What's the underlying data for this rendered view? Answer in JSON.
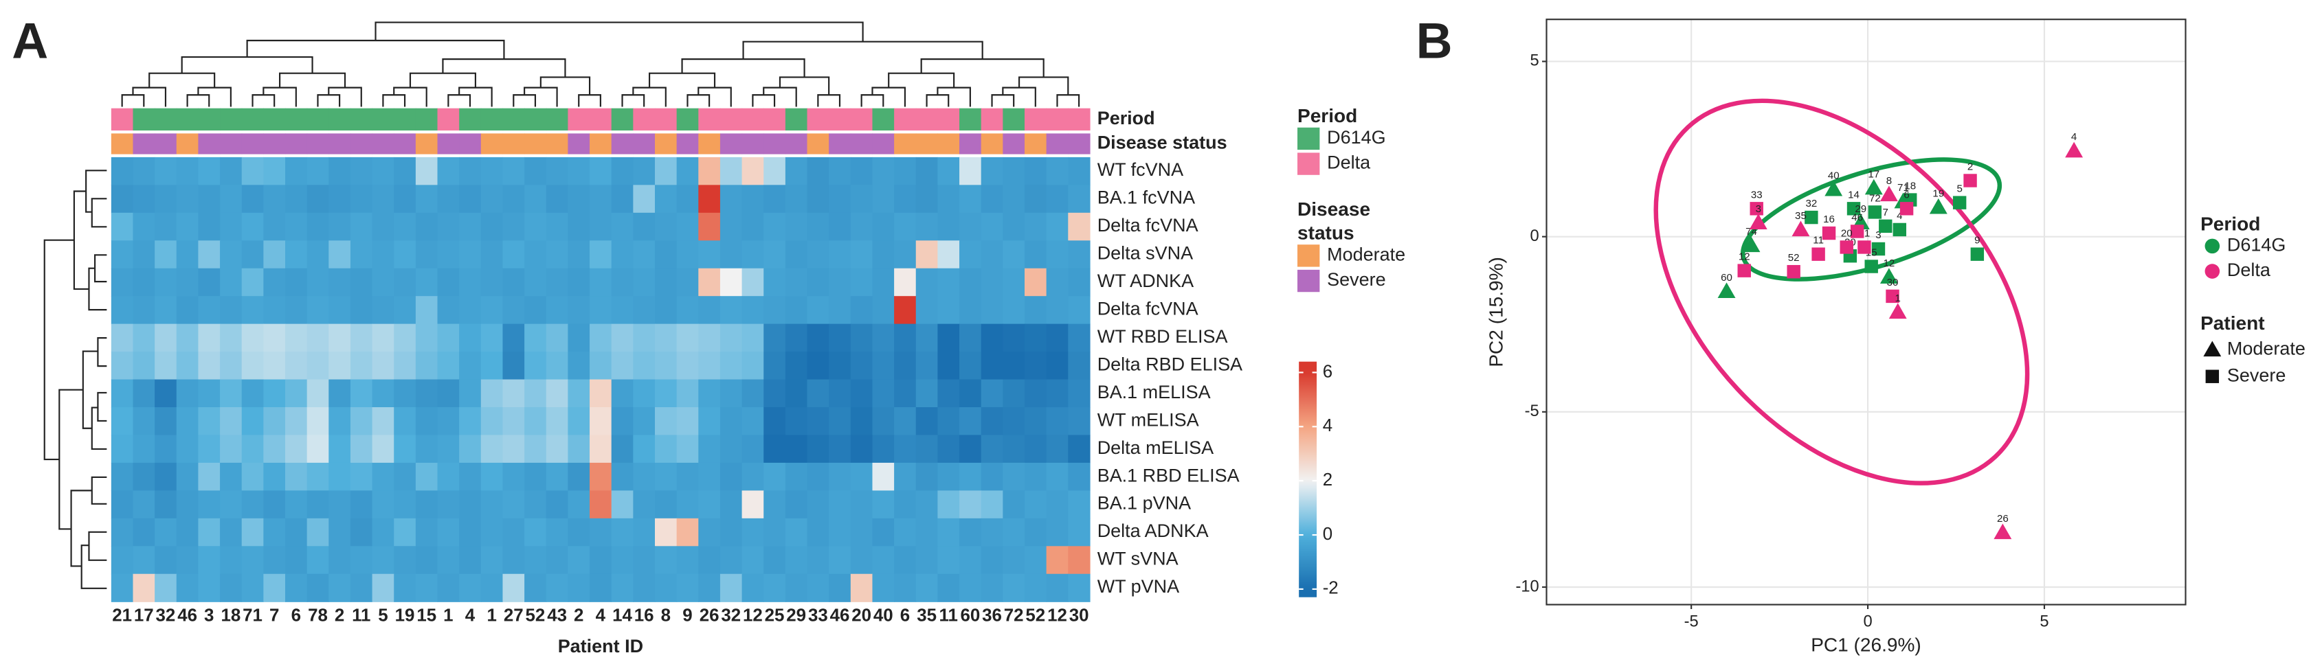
{
  "panel_labels": [
    "A",
    "B"
  ],
  "chart_data": [
    {
      "type": "heatmap",
      "x_label": "Patient ID",
      "categories": [
        "21",
        "17",
        "32",
        "46",
        "3",
        "18",
        "71",
        "7",
        "6",
        "78",
        "2",
        "11",
        "5",
        "19",
        "15",
        "1",
        "4",
        "1",
        "27",
        "52",
        "43",
        "2",
        "4",
        "14",
        "16",
        "8",
        "9",
        "26",
        "32",
        "12",
        "25",
        "29",
        "33",
        "46",
        "20",
        "40",
        "6",
        "35",
        "11",
        "60",
        "36",
        "72",
        "52",
        "12",
        "30"
      ],
      "rows": [
        "WT fcVNA",
        "BA.1 fcVNA",
        "Delta fcVNA",
        "Delta sVNA",
        "WT ADNKA",
        "Delta fcVNA",
        "WT RBD ELISA",
        "Delta RBD ELISA",
        "BA.1 mELISA",
        "WT mELISA",
        "Delta mELISA",
        "BA.1 RBD ELISA",
        "BA.1 pVNA",
        "Delta ADNKA",
        "WT sVNA",
        "WT pVNA"
      ],
      "annotation_labels": [
        "Period",
        "Disease status"
      ],
      "period": [
        "Delta",
        "D614G",
        "D614G",
        "D614G",
        "D614G",
        "D614G",
        "D614G",
        "D614G",
        "D614G",
        "D614G",
        "D614G",
        "D614G",
        "D614G",
        "D614G",
        "D614G",
        "Delta",
        "D614G",
        "D614G",
        "D614G",
        "D614G",
        "D614G",
        "Delta",
        "Delta",
        "D614G",
        "Delta",
        "Delta",
        "D614G",
        "Delta",
        "Delta",
        "Delta",
        "Delta",
        "D614G",
        "Delta",
        "Delta",
        "Delta",
        "D614G",
        "Delta",
        "Delta",
        "Delta",
        "D614G",
        "Delta",
        "D614G",
        "Delta",
        "Delta",
        "Delta"
      ],
      "disease_status": [
        "Moderate",
        "Severe",
        "Severe",
        "Moderate",
        "Severe",
        "Severe",
        "Severe",
        "Severe",
        "Severe",
        "Severe",
        "Severe",
        "Severe",
        "Severe",
        "Severe",
        "Moderate",
        "Severe",
        "Severe",
        "Moderate",
        "Moderate",
        "Moderate",
        "Moderate",
        "Severe",
        "Moderate",
        "Severe",
        "Severe",
        "Moderate",
        "Severe",
        "Moderate",
        "Severe",
        "Severe",
        "Severe",
        "Severe",
        "Moderate",
        "Severe",
        "Severe",
        "Severe",
        "Moderate",
        "Moderate",
        "Moderate",
        "Severe",
        "Moderate",
        "Severe",
        "Moderate",
        "Severe",
        "Severe"
      ],
      "legends": [
        {
          "title": [
            "Period"
          ],
          "levels": [
            {
              "name": "D614G",
              "color": "#4caf72"
            },
            {
              "name": "Delta",
              "color": "#f478a0"
            }
          ]
        },
        {
          "title": [
            "Disease",
            "status"
          ],
          "levels": [
            {
              "name": "Moderate",
              "color": "#f5a05a"
            },
            {
              "name": "Severe",
              "color": "#b36cc0"
            }
          ]
        }
      ],
      "colorscale": [
        [
          -2,
          "#1a6fb0"
        ],
        [
          0,
          "#4fb0dc"
        ],
        [
          2,
          "#f2f2f2"
        ],
        [
          4,
          "#f4a582"
        ],
        [
          6,
          "#d93a2f"
        ]
      ],
      "colorbar": {
        "lim": [
          -2.3,
          6.4
        ],
        "ticks": [
          6,
          4,
          2,
          0,
          -2
        ]
      },
      "values": [
        [
          -0.6,
          -0.5,
          -0.3,
          -0.4,
          -0.2,
          -0.5,
          0.3,
          0.2,
          -0.4,
          -0.3,
          -0.6,
          -0.5,
          -0.4,
          -0.6,
          1.2,
          -0.3,
          -0.5,
          -0.4,
          -0.3,
          -0.6,
          -0.5,
          -0.4,
          -0.2,
          -0.6,
          -0.5,
          0.6,
          -0.4,
          3.5,
          1.0,
          2.8,
          1.2,
          -0.5,
          -0.8,
          -0.6,
          -0.7,
          -0.5,
          -0.6,
          -0.8,
          -0.4,
          1.6,
          -0.5,
          -0.6,
          -0.7,
          -0.5,
          -0.6
        ],
        [
          -0.8,
          -0.7,
          -0.6,
          -0.5,
          -0.6,
          -0.4,
          -0.7,
          -0.5,
          -0.6,
          -0.8,
          -0.7,
          -0.6,
          -0.5,
          -0.7,
          -0.4,
          -0.6,
          -0.7,
          -0.5,
          -0.6,
          -0.4,
          -0.7,
          -0.6,
          -0.5,
          -0.7,
          0.8,
          -0.4,
          -0.6,
          6.2,
          -0.5,
          -0.6,
          -0.7,
          -0.6,
          -0.8,
          -0.7,
          -0.6,
          -0.5,
          -0.7,
          -0.8,
          -0.6,
          -0.4,
          -0.7,
          -0.6,
          -0.8,
          -0.7,
          -0.5
        ],
        [
          0.2,
          -0.4,
          -0.5,
          -0.3,
          -0.6,
          -0.4,
          -0.2,
          -0.5,
          -0.4,
          -0.6,
          -0.5,
          -0.3,
          -0.5,
          -0.4,
          -0.6,
          -0.5,
          -0.4,
          -0.6,
          -0.5,
          -0.3,
          -0.4,
          -0.6,
          -0.5,
          -0.4,
          -0.6,
          -0.5,
          -0.4,
          5.0,
          -0.5,
          -0.6,
          -0.4,
          -0.5,
          -0.6,
          -0.7,
          -0.5,
          -0.6,
          -0.4,
          -0.5,
          -0.6,
          -0.5,
          -0.4,
          -0.6,
          -0.5,
          -0.3,
          3.0
        ],
        [
          -0.3,
          -0.5,
          0.3,
          -0.4,
          0.6,
          -0.3,
          -0.5,
          0.4,
          -0.2,
          -0.4,
          0.5,
          -0.3,
          -0.4,
          -0.2,
          -0.5,
          -0.4,
          -0.3,
          -0.5,
          -0.2,
          -0.4,
          -0.3,
          -0.5,
          0.2,
          -0.4,
          -0.3,
          -0.6,
          -0.4,
          -0.3,
          -0.5,
          -0.4,
          -0.3,
          -0.6,
          -0.5,
          -0.4,
          -0.3,
          -0.6,
          -0.5,
          3.0,
          1.5,
          -0.4,
          -0.5,
          -0.3,
          -0.6,
          -0.4,
          -0.5
        ],
        [
          -0.5,
          -0.6,
          -0.4,
          -0.5,
          -0.7,
          -0.3,
          0.3,
          -0.5,
          -0.6,
          -0.4,
          -0.5,
          -0.6,
          -0.4,
          -0.5,
          -0.3,
          -0.6,
          -0.4,
          -0.5,
          -0.6,
          -0.4,
          -0.5,
          -0.6,
          -0.3,
          -0.5,
          -0.4,
          -0.6,
          -0.5,
          3.2,
          2.0,
          1.0,
          -0.4,
          -0.5,
          -0.6,
          -0.5,
          -0.4,
          -0.6,
          2.2,
          -0.5,
          -0.4,
          -0.6,
          -0.5,
          -0.4,
          3.5,
          -0.5,
          -0.6
        ],
        [
          -0.4,
          -0.5,
          -0.3,
          -0.6,
          -0.4,
          -0.5,
          -0.3,
          -0.4,
          -0.5,
          -0.3,
          -0.4,
          -0.6,
          -0.5,
          -0.4,
          0.5,
          -0.5,
          -0.4,
          -0.3,
          -0.5,
          -0.6,
          -0.4,
          -0.5,
          -0.3,
          -0.4,
          -0.5,
          -0.6,
          -0.4,
          -0.5,
          -0.3,
          -0.4,
          -0.5,
          -0.6,
          -0.4,
          -0.5,
          -0.7,
          -0.6,
          6.5,
          -0.5,
          -0.4,
          -0.6,
          -0.5,
          -0.4,
          -0.6,
          -0.5,
          -0.4
        ],
        [
          0.8,
          0.5,
          1.0,
          0.6,
          1.2,
          0.9,
          1.3,
          1.4,
          1.2,
          1.1,
          1.3,
          1.0,
          1.2,
          0.9,
          0.5,
          0.3,
          -0.2,
          0.1,
          -1.2,
          0.2,
          0.4,
          -0.6,
          0.5,
          0.8,
          0.6,
          0.7,
          0.9,
          0.8,
          0.6,
          0.5,
          -1.3,
          -1.6,
          -1.9,
          -1.7,
          -1.4,
          -1.1,
          -1.5,
          -1.0,
          -2.0,
          -1.3,
          -2.1,
          -1.9,
          -1.8,
          -1.9,
          -1.2
        ],
        [
          0.6,
          0.4,
          0.9,
          0.5,
          1.1,
          0.8,
          1.2,
          1.3,
          1.1,
          1.0,
          1.2,
          0.9,
          1.1,
          0.8,
          0.4,
          0.2,
          -0.3,
          0.0,
          -1.3,
          0.1,
          0.3,
          -0.5,
          0.4,
          0.7,
          0.5,
          0.6,
          0.8,
          0.7,
          0.5,
          0.4,
          -1.4,
          -1.8,
          -2.0,
          -1.8,
          -1.5,
          -1.2,
          -1.6,
          -1.1,
          -2.1,
          -1.4,
          -2.2,
          -2.0,
          -1.9,
          -2.0,
          -1.3
        ],
        [
          -0.2,
          -0.8,
          -1.6,
          -0.5,
          -0.3,
          0.2,
          -0.4,
          0.0,
          0.3,
          1.2,
          -0.6,
          0.1,
          -0.3,
          -0.6,
          -0.8,
          -0.9,
          -0.3,
          0.8,
          1.0,
          0.7,
          1.1,
          0.3,
          2.8,
          -0.5,
          -0.2,
          0.1,
          0.4,
          -0.3,
          -0.5,
          -0.8,
          -1.6,
          -1.8,
          -1.3,
          -1.5,
          -1.7,
          -1.2,
          -1.5,
          -0.9,
          -1.6,
          -1.8,
          -1.1,
          -1.4,
          -1.6,
          -1.5,
          -1.2
        ],
        [
          0.0,
          -0.5,
          -1.0,
          -0.3,
          0.2,
          0.6,
          0.0,
          0.4,
          0.8,
          1.5,
          -0.2,
          0.5,
          1.0,
          -0.2,
          -0.6,
          -0.5,
          0.1,
          0.6,
          0.8,
          0.5,
          0.9,
          0.2,
          2.5,
          -0.7,
          -0.4,
          0.6,
          0.7,
          -0.2,
          -0.6,
          -0.5,
          -1.9,
          -1.7,
          -1.6,
          -1.4,
          -1.8,
          -1.3,
          -1.0,
          -1.7,
          -1.4,
          -1.1,
          -1.6,
          -1.5,
          -1.4,
          -1.2,
          -1.1
        ],
        [
          -0.1,
          -0.4,
          -0.7,
          -0.3,
          0.1,
          0.5,
          0.2,
          0.6,
          1.0,
          1.6,
          0.0,
          0.7,
          1.2,
          0.0,
          -0.4,
          -0.3,
          0.3,
          0.9,
          1.0,
          0.7,
          1.0,
          0.4,
          2.6,
          -0.9,
          -0.1,
          0.3,
          0.5,
          -0.4,
          -0.6,
          -0.7,
          -2.0,
          -2.1,
          -1.8,
          -1.6,
          -1.9,
          -1.5,
          -1.2,
          -1.3,
          -1.6,
          -1.9,
          -1.3,
          -1.4,
          -1.5,
          -1.3,
          -1.8
        ],
        [
          -0.6,
          -0.9,
          -1.2,
          -0.5,
          0.6,
          -0.4,
          0.3,
          -0.2,
          0.4,
          0.2,
          0.0,
          0.1,
          -0.3,
          -0.5,
          0.3,
          -0.2,
          -0.5,
          -0.1,
          -0.4,
          -0.6,
          -0.3,
          -0.8,
          4.5,
          -0.6,
          -0.4,
          -0.3,
          -0.5,
          -0.4,
          -0.7,
          -0.5,
          -0.3,
          -0.6,
          -0.7,
          -0.5,
          -0.4,
          1.8,
          -0.5,
          -0.8,
          -0.6,
          -0.4,
          -0.7,
          -0.5,
          -0.6,
          -0.4,
          -0.7
        ],
        [
          -0.7,
          -0.5,
          -0.9,
          -0.6,
          -0.4,
          -0.3,
          -0.5,
          -0.7,
          -0.4,
          -0.6,
          -0.5,
          -0.7,
          -0.3,
          -0.4,
          -0.6,
          -0.5,
          -0.6,
          -0.4,
          -0.3,
          -0.5,
          -0.7,
          -0.4,
          4.8,
          0.6,
          -0.5,
          -0.6,
          -0.4,
          -0.3,
          -0.6,
          2.2,
          -0.5,
          -0.7,
          -0.6,
          -0.4,
          -0.5,
          -0.3,
          -0.6,
          -0.5,
          0.4,
          0.7,
          0.5,
          -0.6,
          -0.4,
          -0.5,
          -0.3
        ],
        [
          -0.5,
          -0.7,
          -0.4,
          -0.6,
          0.3,
          -0.5,
          0.5,
          -0.4,
          -0.6,
          0.4,
          -0.5,
          -0.8,
          -0.4,
          0.2,
          -0.5,
          -0.3,
          -0.6,
          -0.4,
          -0.5,
          -0.2,
          -0.4,
          -0.6,
          -0.5,
          -0.3,
          -0.4,
          2.5,
          3.5,
          -0.5,
          -0.6,
          -0.4,
          -0.5,
          -0.3,
          -0.6,
          -0.4,
          -0.5,
          -0.7,
          -0.4,
          -0.5,
          -0.3,
          -0.6,
          -0.5,
          -0.4,
          -0.6,
          -0.5,
          -0.3
        ],
        [
          -0.4,
          -0.3,
          -0.6,
          -0.5,
          -0.2,
          -0.4,
          -0.3,
          -0.5,
          -0.6,
          -0.2,
          -0.5,
          -0.4,
          -0.3,
          -0.5,
          -0.6,
          -0.4,
          -0.6,
          -0.3,
          -0.5,
          -0.4,
          -0.5,
          -0.3,
          -0.6,
          -0.4,
          -0.5,
          -0.3,
          -0.4,
          -0.6,
          -0.5,
          -0.3,
          -0.6,
          -0.4,
          -0.5,
          -0.3,
          -0.5,
          -0.4,
          -0.6,
          -0.5,
          -0.3,
          -0.4,
          -0.6,
          -0.5,
          -0.4,
          4.2,
          4.5
        ],
        [
          -0.3,
          2.8,
          0.6,
          -0.4,
          -0.2,
          -0.5,
          -0.3,
          0.5,
          -0.4,
          -0.6,
          -0.3,
          -0.5,
          0.8,
          -0.4,
          -0.3,
          -0.5,
          -0.3,
          -0.4,
          1.2,
          -0.5,
          -0.3,
          -0.4,
          -0.6,
          -0.3,
          -0.5,
          -0.4,
          -0.3,
          -0.5,
          0.6,
          -0.4,
          -0.3,
          -0.5,
          -0.4,
          -0.6,
          3.0,
          -0.4,
          -0.5,
          -0.3,
          -0.6,
          -0.4,
          -0.5,
          -0.3,
          -0.4,
          -0.5,
          -0.3
        ]
      ]
    },
    {
      "type": "scatter",
      "x_label": "PC1 (26.9%)",
      "y_label": "PC2 (15.9%)",
      "xlim": [
        -9.1,
        9.0
      ],
      "ylim": [
        -10.5,
        6.2
      ],
      "xticks": [
        -5,
        0,
        5
      ],
      "yticks": [
        5,
        0,
        -5,
        -10
      ],
      "grid": true,
      "legend_title": "Period",
      "series": [
        {
          "name": "D614G",
          "color": "#13994a",
          "labels": [
            "17",
            "40",
            "19",
            "5",
            "18",
            "9",
            "14",
            "4",
            "74",
            "60",
            "32",
            "20",
            "3",
            "15",
            "12",
            "7",
            "72",
            "71",
            "29"
          ],
          "x": [
            0.17,
            -0.97,
            2.0,
            2.6,
            1.2,
            3.1,
            -0.4,
            0.9,
            -3.3,
            -4.0,
            -1.6,
            -0.5,
            0.3,
            0.1,
            0.6,
            0.5,
            0.2,
            1.0,
            -0.2
          ],
          "y": [
            1.39,
            1.35,
            0.84,
            0.97,
            1.05,
            -0.5,
            0.8,
            0.2,
            -0.25,
            -1.56,
            0.55,
            -0.55,
            -0.35,
            -0.85,
            -1.15,
            0.3,
            0.7,
            1.0,
            0.4
          ],
          "status": [
            "Moderate",
            "Moderate",
            "Moderate",
            "Severe",
            "Severe",
            "Severe",
            "Severe",
            "Severe",
            "Moderate",
            "Moderate",
            "Severe",
            "Severe",
            "Severe",
            "Severe",
            "Moderate",
            "Severe",
            "Severe",
            "Moderate",
            "Moderate"
          ]
        },
        {
          "name": "Delta",
          "color": "#e6297d",
          "labels": [
            "4",
            "26",
            "2",
            "33",
            "3",
            "12",
            "52",
            "35",
            "16",
            "11",
            "21",
            "8",
            "30",
            "1",
            "46",
            "6",
            "20"
          ],
          "x": [
            5.84,
            3.82,
            2.9,
            -3.15,
            -3.1,
            -3.5,
            -2.1,
            -1.9,
            -1.1,
            -1.4,
            -0.1,
            0.6,
            0.7,
            0.85,
            -0.3,
            1.1,
            -0.6
          ],
          "y": [
            2.45,
            -8.44,
            1.6,
            0.8,
            0.4,
            -0.97,
            -1.0,
            0.2,
            0.1,
            -0.5,
            -0.3,
            1.2,
            -1.7,
            -2.15,
            0.15,
            0.8,
            -0.3
          ],
          "status": [
            "Moderate",
            "Moderate",
            "Severe",
            "Severe",
            "Moderate",
            "Severe",
            "Severe",
            "Moderate",
            "Severe",
            "Severe",
            "Severe",
            "Moderate",
            "Severe",
            "Moderate",
            "Severe",
            "Severe",
            "Severe"
          ]
        }
      ],
      "shape_legend": {
        "title": "Patient",
        "levels": [
          {
            "name": "Moderate",
            "shape": "triangle"
          },
          {
            "name": "Severe",
            "shape": "square"
          }
        ]
      }
    }
  ]
}
